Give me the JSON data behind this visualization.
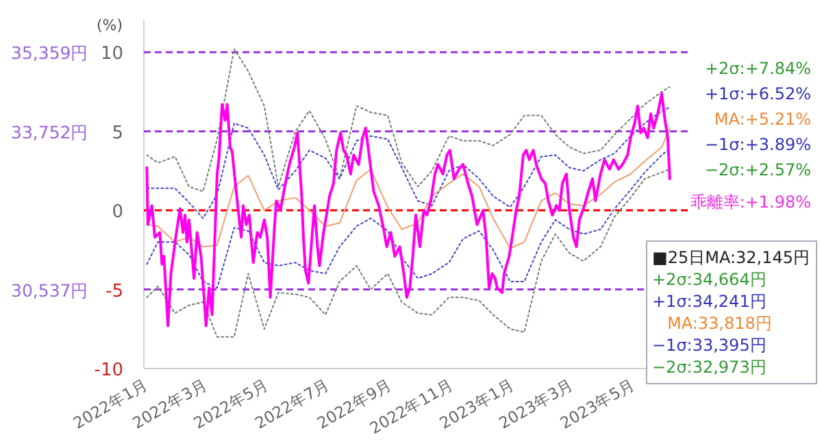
{
  "chart_data": {
    "type": "line",
    "ylabel": "(%)",
    "xlim": [
      "2022-01-01",
      "2023-07-01"
    ],
    "ylim": [
      -10,
      12
    ],
    "yticks": [
      -10,
      -5,
      0,
      5,
      10
    ],
    "xticks": [
      {
        "value": "2022-01",
        "label": "2022年1月"
      },
      {
        "value": "2022-03",
        "label": "2022年3月"
      },
      {
        "value": "2022-05",
        "label": "2022年5月"
      },
      {
        "value": "2022-07",
        "label": "2022年7月"
      },
      {
        "value": "2022-09",
        "label": "2022年9月"
      },
      {
        "value": "2022-11",
        "label": "2022年11月"
      },
      {
        "value": "2023-01",
        "label": "2023年1月"
      },
      {
        "value": "2023-03",
        "label": "2023年3月"
      },
      {
        "value": "2023-05",
        "label": "2023年5月"
      }
    ],
    "y2lim": [
      28931,
      36002
    ],
    "y2ticks": [
      {
        "value": 30537,
        "label": "30,537円"
      },
      {
        "value": 33752,
        "label": "33,752円"
      },
      {
        "value": 35359,
        "label": "35,359円"
      }
    ],
    "ref_lines": [
      {
        "axis": "y",
        "value": 10,
        "color": "#9933dd",
        "line_style": "dashed"
      },
      {
        "axis": "y",
        "value": 5,
        "color": "#9933dd",
        "line_style": "dashed"
      },
      {
        "axis": "y",
        "value": 0,
        "color": "#ee0000",
        "line_style": "dashed"
      },
      {
        "axis": "y",
        "value": -5,
        "color": "#9933dd",
        "line_style": "dashed"
      }
    ],
    "x": [
      "2022-01-04",
      "2022-01-15",
      "2022-02-01",
      "2022-02-15",
      "2022-03-01",
      "2022-03-15",
      "2022-04-01",
      "2022-04-15",
      "2022-05-01",
      "2022-05-15",
      "2022-06-01",
      "2022-06-15",
      "2022-07-01",
      "2022-07-15",
      "2022-08-01",
      "2022-08-15",
      "2022-09-01",
      "2022-09-15",
      "2022-10-01",
      "2022-10-15",
      "2022-11-01",
      "2022-11-15",
      "2022-12-01",
      "2022-12-15",
      "2023-01-01",
      "2023-01-15",
      "2023-02-01",
      "2023-02-15",
      "2023-03-01",
      "2023-03-15",
      "2023-04-01",
      "2023-04-15",
      "2023-05-01",
      "2023-05-15",
      "2023-06-01",
      "2023-06-09"
    ],
    "series": [
      {
        "name": "+2σ:+7.84%",
        "color": "#6f7f6f",
        "line_style": "dotted",
        "values": [
          3.5,
          3.0,
          3.4,
          1.5,
          1.2,
          4.5,
          10.2,
          8.8,
          6.6,
          1.5,
          5.0,
          6.3,
          4.5,
          2.0,
          6.6,
          6.2,
          6.0,
          3.0,
          1.5,
          2.5,
          4.7,
          4.4,
          4.4,
          4.1,
          4.8,
          6.0,
          6.0,
          4.8,
          4.0,
          3.6,
          3.8,
          4.8,
          5.8,
          6.7,
          7.5,
          7.8
        ]
      },
      {
        "name": "+1σ:+6.52%",
        "color": "#4444cc",
        "line_style": "dotted",
        "values": [
          1.4,
          1.4,
          1.4,
          0.5,
          -0.5,
          1.0,
          5.5,
          5.2,
          3.5,
          1.3,
          2.5,
          3.8,
          3.3,
          2.0,
          4.4,
          4.7,
          4.5,
          2.7,
          0.6,
          0.3,
          2.5,
          2.9,
          2.0,
          0.9,
          0.2,
          1.5,
          3.4,
          3.5,
          2.7,
          2.5,
          3.2,
          3.6,
          4.7,
          5.5,
          6.3,
          6.5
        ]
      },
      {
        "name": "MA:+5.21%",
        "color": "#f0a070",
        "line_style": "solid",
        "values": [
          -0.9,
          -1.0,
          -2.0,
          -1.7,
          -2.3,
          -2.2,
          1.5,
          2.2,
          0,
          0.6,
          0.8,
          0,
          -1.0,
          -0.8,
          1.9,
          2.6,
          0.2,
          -1.2,
          -0.8,
          0.9,
          1.7,
          2.3,
          1.5,
          -0.5,
          -2.4,
          -2.0,
          0.6,
          1.1,
          0.4,
          0.3,
          1.0,
          1.8,
          2.3,
          3.1,
          4.0,
          5.2
        ]
      },
      {
        "name": "−1σ:+3.89%",
        "color": "#4444cc",
        "line_style": "dotted",
        "values": [
          -3.4,
          -2.0,
          -2.0,
          -2.8,
          -4.5,
          -4.9,
          -1.1,
          -1.3,
          -3.3,
          -3.5,
          -3.3,
          -3.8,
          -4.0,
          -2.3,
          -1.0,
          -0.5,
          -1.3,
          -3.0,
          -4.3,
          -4.0,
          -3.3,
          -1.8,
          -1.3,
          -2.5,
          -4.5,
          -4.5,
          -2.0,
          -0.6,
          -1.2,
          -1.5,
          -1.2,
          0.1,
          1.3,
          2.4,
          3.5,
          3.9
        ]
      },
      {
        "name": "−2σ:+2.57%",
        "color": "#6f7f6f",
        "line_style": "dotted",
        "values": [
          -5.5,
          -4.8,
          -6.5,
          -6.0,
          -5.8,
          -8.0,
          -8.0,
          -4.0,
          -7.5,
          -5.2,
          -5.3,
          -5.5,
          -6.6,
          -4.5,
          -3.5,
          -5.0,
          -4.0,
          -5.8,
          -6.5,
          -6.6,
          -5.5,
          -5.5,
          -5.7,
          -6.6,
          -7.5,
          -7.7,
          -3.2,
          -1.5,
          -2.7,
          -3.2,
          -2.3,
          -0.4,
          0.8,
          2.0,
          2.4,
          2.6
        ]
      },
      {
        "name": "乖離率:+1.98%",
        "color": "#ff00ee",
        "line_style": "solid",
        "x": [
          "2022-01-04",
          "2022-01-05",
          "2022-01-09",
          "2022-01-12",
          "2022-01-17",
          "2022-01-19",
          "2022-01-21",
          "2022-01-25",
          "2022-01-28",
          "2022-02-02",
          "2022-02-06",
          "2022-02-09",
          "2022-02-11",
          "2022-02-13",
          "2022-02-15",
          "2022-02-20",
          "2022-02-23",
          "2022-02-27",
          "2022-03-02",
          "2022-03-04",
          "2022-03-07",
          "2022-03-10",
          "2022-03-15",
          "2022-03-17",
          "2022-03-20",
          "2022-03-23",
          "2022-03-25",
          "2022-03-28",
          "2022-03-30",
          "2022-04-04",
          "2022-04-08",
          "2022-04-10",
          "2022-04-13",
          "2022-04-16",
          "2022-04-20",
          "2022-04-24",
          "2022-04-27",
          "2022-05-01",
          "2022-05-04",
          "2022-05-07",
          "2022-05-11",
          "2022-05-13",
          "2022-05-17",
          "2022-05-22",
          "2022-05-26",
          "2022-05-31",
          "2022-06-03",
          "2022-06-07",
          "2022-06-09",
          "2022-06-11",
          "2022-06-14",
          "2022-06-16",
          "2022-06-20",
          "2022-06-23",
          "2022-06-25",
          "2022-06-29",
          "2022-07-02",
          "2022-07-05",
          "2022-07-09",
          "2022-07-12",
          "2022-07-16",
          "2022-07-19",
          "2022-07-22",
          "2022-07-26",
          "2022-07-29",
          "2022-08-03",
          "2022-08-07",
          "2022-08-10",
          "2022-08-14",
          "2022-08-18",
          "2022-08-23",
          "2022-08-28",
          "2022-08-31",
          "2022-09-04",
          "2022-09-08",
          "2022-09-13",
          "2022-09-17",
          "2022-09-20",
          "2022-09-23",
          "2022-09-26",
          "2022-09-29",
          "2022-10-03",
          "2022-10-07",
          "2022-10-10",
          "2022-10-14",
          "2022-10-18",
          "2022-10-21",
          "2022-10-26",
          "2022-10-30",
          "2022-11-02",
          "2022-11-06",
          "2022-11-11",
          "2022-11-15",
          "2022-11-20",
          "2022-11-24",
          "2022-11-29",
          "2022-12-01",
          "2022-12-05",
          "2022-12-08",
          "2022-12-11",
          "2022-12-14",
          "2022-12-17",
          "2022-12-19",
          "2022-12-24",
          "2022-12-26",
          "2022-12-31",
          "2023-01-03",
          "2023-01-07",
          "2023-01-10",
          "2023-01-14",
          "2023-01-17",
          "2023-01-20",
          "2023-01-24",
          "2023-01-27",
          "2023-02-01",
          "2023-02-05",
          "2023-02-08",
          "2023-02-12",
          "2023-02-16",
          "2023-02-19",
          "2023-02-22",
          "2023-02-26",
          "2023-03-01",
          "2023-03-05",
          "2023-03-08",
          "2023-03-11",
          "2023-03-16",
          "2023-03-20",
          "2023-03-24",
          "2023-03-27",
          "2023-04-01",
          "2023-04-05",
          "2023-04-10",
          "2023-04-14",
          "2023-04-19",
          "2023-04-23",
          "2023-04-28",
          "2023-05-01",
          "2023-05-05",
          "2023-05-08",
          "2023-05-11",
          "2023-05-14",
          "2023-05-18",
          "2023-05-21",
          "2023-05-24",
          "2023-05-28",
          "2023-06-01",
          "2023-06-04",
          "2023-06-07",
          "2023-06-09"
        ],
        "values": [
          2.7,
          -0.9,
          0.3,
          -1.7,
          -1.4,
          -3.4,
          -2.9,
          -7.3,
          -4.0,
          -1.6,
          0.1,
          -1.4,
          -0.3,
          -2.0,
          -0.6,
          -4.3,
          -1.4,
          -2.9,
          -5.5,
          -7.3,
          -4.9,
          -6.6,
          2.3,
          3.4,
          6.7,
          5.7,
          6.7,
          4.0,
          3.7,
          0.6,
          -1.7,
          0.3,
          -0.9,
          -0.3,
          -3.3,
          -1.4,
          -1.7,
          -0.6,
          -1.7,
          -5.5,
          -1.2,
          0.6,
          0,
          1.7,
          2.9,
          4.0,
          4.9,
          1.2,
          -1.7,
          -3.8,
          -4.6,
          -2.9,
          0.3,
          -2.3,
          -3.5,
          -1.4,
          -0.3,
          0.9,
          1.7,
          3.8,
          4.9,
          3.8,
          3.5,
          2.3,
          3.5,
          2.9,
          4.6,
          5.2,
          3.2,
          1.2,
          0.3,
          -1.2,
          -2.3,
          -1.4,
          -2.9,
          -2.3,
          -4.0,
          -5.5,
          -4.9,
          -2.9,
          -0.3,
          -2.3,
          0,
          -0.3,
          0.6,
          2.3,
          2.9,
          2.3,
          3.5,
          3.8,
          2.0,
          2.6,
          2.9,
          1.7,
          0.9,
          -0.9,
          -0.6,
          0,
          -1.7,
          -4.9,
          -4.0,
          -4.3,
          -4.9,
          -5.2,
          -4.0,
          -2.9,
          -1.7,
          0,
          0.9,
          3.5,
          3.8,
          3.2,
          3.8,
          2.9,
          2.0,
          1.7,
          0.6,
          -0.3,
          0.3,
          0,
          1.7,
          2.3,
          0,
          -1.7,
          -2.3,
          -0.6,
          0.3,
          1.2,
          2.0,
          0.6,
          2.3,
          3.2,
          2.6,
          3.2,
          2.6,
          2.9,
          3.5,
          4.6,
          5.5,
          6.6,
          4.9,
          5.2,
          4.6,
          6.1,
          5.2,
          6.1,
          7.4,
          5.8,
          4.6,
          2.0
        ]
      }
    ],
    "annotations": [
      "■25日MA:32,145円",
      "+2σ:34,664円",
      "+1σ:34,241円",
      "MA:33,818円",
      "−1σ:33,395円",
      "−2σ:32,973円"
    ]
  }
}
